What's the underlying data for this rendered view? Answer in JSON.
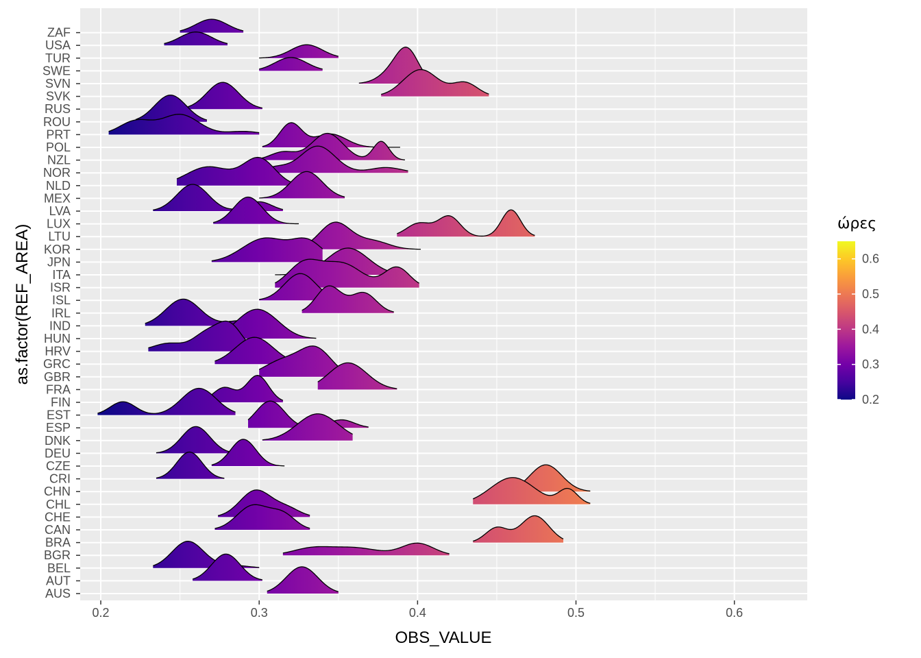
{
  "chart_data": {
    "type": "ridgeline",
    "xlabel": "OBS_VALUE",
    "ylabel": "as.factor(REF_AREA)",
    "xlim": [
      0.187,
      0.646
    ],
    "x_ticks": [
      0.2,
      0.3,
      0.4,
      0.5,
      0.6
    ],
    "x_tick_labels": [
      "0.2",
      "0.3",
      "0.4",
      "0.5",
      "0.6"
    ],
    "categories": [
      "AUS",
      "AUT",
      "BEL",
      "BGR",
      "BRA",
      "CAN",
      "CHE",
      "CHL",
      "CHN",
      "CRI",
      "CZE",
      "DEU",
      "DNK",
      "ESP",
      "EST",
      "FIN",
      "FRA",
      "GBR",
      "GRC",
      "HRV",
      "HUN",
      "IND",
      "IRL",
      "ISL",
      "ISR",
      "ITA",
      "JPN",
      "KOR",
      "LTU",
      "LUX",
      "LVA",
      "MEX",
      "NLD",
      "NOR",
      "NZL",
      "POL",
      "PRT",
      "ROU",
      "RUS",
      "SVK",
      "SVN",
      "SWE",
      "TUR",
      "USA",
      "ZAF"
    ],
    "grid": true,
    "legend": {
      "title": "ώρες",
      "position": "right",
      "type": "colorbar",
      "range": [
        0.2,
        0.65
      ],
      "ticks": [
        0.2,
        0.3,
        0.4,
        0.5,
        0.6
      ],
      "tick_labels": [
        "0.2",
        "0.3",
        "0.4",
        "0.5",
        "0.6"
      ],
      "colormap": "plasma",
      "colors": [
        "#0d0887",
        "#47039f",
        "#7301a8",
        "#9c179e",
        "#bd3786",
        "#d8576b",
        "#ed7953",
        "#fa9e3b",
        "#fdc926",
        "#f0f921"
      ]
    },
    "series": [
      {
        "name": "AUS",
        "peaks": [
          [
            0.327,
            1.0,
            0.01
          ]
        ],
        "range": [
          0.305,
          0.35
        ]
      },
      {
        "name": "AUT",
        "peaks": [
          [
            0.279,
            1.0,
            0.009
          ]
        ],
        "range": [
          0.258,
          0.302
        ]
      },
      {
        "name": "BEL",
        "peaks": [
          [
            0.255,
            1.0,
            0.01
          ],
          [
            0.283,
            0.1,
            0.01
          ]
        ],
        "range": [
          0.233,
          0.3
        ]
      },
      {
        "name": "BGR",
        "peaks": [
          [
            0.333,
            0.25,
            0.012
          ],
          [
            0.36,
            0.28,
            0.015
          ],
          [
            0.4,
            0.45,
            0.01
          ]
        ],
        "range": [
          0.315,
          0.42
        ]
      },
      {
        "name": "BRA",
        "peaks": [
          [
            0.45,
            0.55,
            0.007
          ],
          [
            0.474,
            1.0,
            0.009
          ]
        ],
        "range": [
          0.435,
          0.492
        ]
      },
      {
        "name": "CAN",
        "peaks": [
          [
            0.296,
            0.9,
            0.01
          ],
          [
            0.315,
            0.55,
            0.008
          ]
        ],
        "range": [
          0.272,
          0.332
        ]
      },
      {
        "name": "CHE",
        "peaks": [
          [
            0.298,
            1.0,
            0.01
          ],
          [
            0.318,
            0.3,
            0.008
          ]
        ],
        "range": [
          0.274,
          0.332
        ]
      },
      {
        "name": "CHL",
        "peaks": [
          [
            0.46,
            1.0,
            0.014
          ],
          [
            0.495,
            0.55,
            0.006
          ]
        ],
        "range": [
          0.435,
          0.509
        ]
      },
      {
        "name": "CHN",
        "peaks": [
          [
            0.481,
            1.0,
            0.01
          ]
        ],
        "range": [
          0.457,
          0.509
        ]
      },
      {
        "name": "CRI",
        "peaks": [
          [
            0.256,
            1.0,
            0.008
          ]
        ],
        "range": [
          0.235,
          0.278
        ]
      },
      {
        "name": "CZE",
        "peaks": [
          [
            0.29,
            1.0,
            0.008
          ]
        ],
        "range": [
          0.27,
          0.316
        ]
      },
      {
        "name": "DEU",
        "peaks": [
          [
            0.26,
            1.0,
            0.009
          ]
        ],
        "range": [
          0.235,
          0.283
        ]
      },
      {
        "name": "DNK",
        "peaks": [
          [
            0.337,
            1.0,
            0.013
          ]
        ],
        "range": [
          0.302,
          0.359
        ]
      },
      {
        "name": "ESP",
        "peaks": [
          [
            0.307,
            1.0,
            0.009
          ],
          [
            0.352,
            0.3,
            0.008
          ]
        ],
        "range": [
          0.293,
          0.369
        ]
      },
      {
        "name": "EST",
        "peaks": [
          [
            0.214,
            0.5,
            0.008
          ],
          [
            0.262,
            1.0,
            0.011
          ]
        ],
        "range": [
          0.198,
          0.285
        ]
      },
      {
        "name": "FIN",
        "peaks": [
          [
            0.278,
            0.55,
            0.007
          ],
          [
            0.299,
            1.0,
            0.007
          ]
        ],
        "range": [
          0.263,
          0.315
        ]
      },
      {
        "name": "FRA",
        "peaks": [
          [
            0.356,
            1.0,
            0.012
          ]
        ],
        "range": [
          0.337,
          0.387
        ]
      },
      {
        "name": "GBR",
        "peaks": [
          [
            0.315,
            0.6,
            0.012
          ],
          [
            0.336,
            1.0,
            0.01
          ]
        ],
        "range": [
          0.3,
          0.362
        ]
      },
      {
        "name": "GRC",
        "peaks": [
          [
            0.297,
            1.0,
            0.012
          ]
        ],
        "range": [
          0.272,
          0.33
        ]
      },
      {
        "name": "HRV",
        "peaks": [
          [
            0.243,
            0.3,
            0.01
          ],
          [
            0.266,
            0.6,
            0.008
          ],
          [
            0.281,
            1.0,
            0.008
          ]
        ],
        "range": [
          0.23,
          0.301
        ]
      },
      {
        "name": "HUN",
        "peaks": [
          [
            0.297,
            1.0,
            0.012
          ],
          [
            0.31,
            0.2,
            0.01
          ]
        ],
        "range": [
          0.272,
          0.336
        ]
      },
      {
        "name": "IND",
        "peaks": [
          [
            0.252,
            1.0,
            0.011
          ],
          [
            0.29,
            0.2,
            0.01
          ]
        ],
        "range": [
          0.228,
          0.31
        ]
      },
      {
        "name": "IRL",
        "peaks": [
          [
            0.344,
            1.0,
            0.008
          ],
          [
            0.366,
            0.75,
            0.008
          ]
        ],
        "range": [
          0.327,
          0.385
        ]
      },
      {
        "name": "ISL",
        "peaks": [
          [
            0.326,
            1.0,
            0.01
          ]
        ],
        "range": [
          0.3,
          0.347
        ]
      },
      {
        "name": "ISR",
        "peaks": [
          [
            0.328,
            0.85,
            0.01
          ],
          [
            0.352,
            0.9,
            0.013
          ],
          [
            0.387,
            0.75,
            0.008
          ]
        ],
        "range": [
          0.31,
          0.401
        ]
      },
      {
        "name": "ITA",
        "peaks": [
          [
            0.356,
            1.0,
            0.013
          ]
        ],
        "range": [
          0.31,
          0.39
        ]
      },
      {
        "name": "JPN",
        "peaks": [
          [
            0.3,
            0.7,
            0.013
          ],
          [
            0.31,
            0.25,
            0.01
          ],
          [
            0.33,
            0.8,
            0.01
          ],
          [
            0.372,
            0.3,
            0.008
          ]
        ],
        "range": [
          0.27,
          0.34
        ]
      },
      {
        "name": "KOR",
        "peaks": [
          [
            0.348,
            1.0,
            0.01
          ],
          [
            0.372,
            0.3,
            0.01
          ]
        ],
        "range": [
          0.328,
          0.402
        ]
      },
      {
        "name": "LTU",
        "peaks": [
          [
            0.401,
            0.5,
            0.008
          ],
          [
            0.42,
            0.75,
            0.007
          ],
          [
            0.459,
            1.0,
            0.006
          ]
        ],
        "range": [
          0.387,
          0.474
        ]
      },
      {
        "name": "LUX",
        "peaks": [
          [
            0.293,
            1.0,
            0.009
          ]
        ],
        "range": [
          0.271,
          0.325
        ]
      },
      {
        "name": "LVA",
        "peaks": [
          [
            0.258,
            1.0,
            0.01
          ],
          [
            0.3,
            0.35,
            0.008
          ]
        ],
        "range": [
          0.233,
          0.315
        ]
      },
      {
        "name": "MEX",
        "peaks": [
          [
            0.33,
            1.0,
            0.01
          ]
        ],
        "range": [
          0.3,
          0.354
        ]
      },
      {
        "name": "NLD",
        "peaks": [
          [
            0.268,
            0.7,
            0.014
          ],
          [
            0.3,
            1.0,
            0.01
          ]
        ],
        "range": [
          0.248,
          0.33
        ]
      },
      {
        "name": "NOR",
        "peaks": [
          [
            0.31,
            0.2,
            0.008
          ],
          [
            0.337,
            1.0,
            0.011
          ],
          [
            0.38,
            0.2,
            0.01
          ]
        ],
        "range": [
          0.302,
          0.394
        ]
      },
      {
        "name": "NZL",
        "peaks": [
          [
            0.315,
            0.3,
            0.008
          ],
          [
            0.343,
            1.0,
            0.01
          ],
          [
            0.377,
            0.7,
            0.005
          ]
        ],
        "range": [
          0.3,
          0.392
        ]
      },
      {
        "name": "POL",
        "peaks": [
          [
            0.32,
            0.9,
            0.007
          ],
          [
            0.345,
            0.5,
            0.01
          ]
        ],
        "range": [
          0.302,
          0.389
        ]
      },
      {
        "name": "PRT",
        "peaks": [
          [
            0.222,
            0.5,
            0.01
          ],
          [
            0.25,
            0.75,
            0.012
          ],
          [
            0.29,
            0.12,
            0.01
          ]
        ],
        "range": [
          0.205,
          0.3
        ]
      },
      {
        "name": "ROU",
        "peaks": [
          [
            0.244,
            1.0,
            0.01
          ]
        ],
        "range": [
          0.222,
          0.267
        ]
      },
      {
        "name": "RUS",
        "peaks": [
          [
            0.277,
            1.0,
            0.01
          ]
        ],
        "range": [
          0.253,
          0.302
        ]
      },
      {
        "name": "SVK",
        "peaks": [
          [
            0.402,
            1.0,
            0.011
          ],
          [
            0.43,
            0.5,
            0.008
          ]
        ],
        "range": [
          0.377,
          0.445
        ]
      },
      {
        "name": "SVN",
        "peaks": [
          [
            0.386,
            0.5,
            0.009
          ],
          [
            0.394,
            1.0,
            0.007
          ]
        ],
        "range": [
          0.363,
          0.41
        ]
      },
      {
        "name": "SWE",
        "peaks": [
          [
            0.32,
            0.5,
            0.01
          ]
        ],
        "range": [
          0.3,
          0.34
        ]
      },
      {
        "name": "TUR",
        "peaks": [
          [
            0.33,
            0.5,
            0.01
          ]
        ],
        "range": [
          0.3,
          0.35
        ]
      },
      {
        "name": "USA",
        "peaks": [
          [
            0.26,
            0.5,
            0.01
          ]
        ],
        "range": [
          0.24,
          0.28
        ]
      },
      {
        "name": "ZAF",
        "peaks": [
          [
            0.27,
            0.5,
            0.01
          ]
        ],
        "range": [
          0.25,
          0.29
        ]
      }
    ],
    "notes": ""
  }
}
